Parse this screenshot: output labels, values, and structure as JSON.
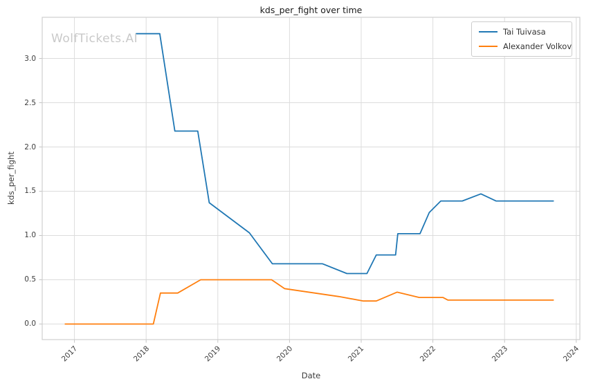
{
  "title": "kds_per_fight over time",
  "watermark": "WolfTickets.AI",
  "chart_data": {
    "type": "line",
    "title": "kds_per_fight over time",
    "xlabel": "Date",
    "ylabel": "kds_per_fight",
    "x_ticks": [
      2017,
      2018,
      2019,
      2020,
      2021,
      2022,
      2023,
      2024
    ],
    "y_ticks": [
      0.0,
      0.5,
      1.0,
      1.5,
      2.0,
      2.5,
      3.0
    ],
    "xlim": [
      2016.55,
      2024.05
    ],
    "ylim": [
      -0.176,
      3.465
    ],
    "grid": true,
    "legend_position": "upper right",
    "series": [
      {
        "name": "Tai Tuivasa",
        "color": "#1f77b4",
        "x": [
          2017.86,
          2018.19,
          2018.4,
          2018.72,
          2018.88,
          2019.44,
          2019.76,
          2020.46,
          2020.8,
          2021.08,
          2021.21,
          2021.48,
          2021.51,
          2021.82,
          2021.95,
          2022.11,
          2022.41,
          2022.67,
          2022.88,
          2023.68
        ],
        "y": [
          3.28,
          3.28,
          2.18,
          2.18,
          1.37,
          1.03,
          0.68,
          0.68,
          0.57,
          0.57,
          0.78,
          0.78,
          1.02,
          1.02,
          1.26,
          1.39,
          1.39,
          1.47,
          1.39,
          1.39
        ]
      },
      {
        "name": "Alexander Volkov",
        "color": "#ff7f0e",
        "x": [
          2016.87,
          2018.1,
          2018.2,
          2018.44,
          2018.76,
          2019.75,
          2019.93,
          2020.69,
          2021.03,
          2021.21,
          2021.5,
          2021.81,
          2022.14,
          2022.21,
          2023.68
        ],
        "y": [
          0.0,
          0.0,
          0.35,
          0.35,
          0.5,
          0.5,
          0.4,
          0.31,
          0.26,
          0.26,
          0.36,
          0.3,
          0.3,
          0.27,
          0.27
        ]
      }
    ]
  },
  "colors": {
    "background": "#ffffff",
    "grid": "#dcdcdc",
    "plot_border": "#cfcfcf",
    "tick_mark": "#c4c4c4",
    "title_text": "#1a1a1a",
    "tick_text": "#3d3d3d",
    "watermark_text": "#c9c9c9",
    "legend_border": "#cccccc"
  }
}
